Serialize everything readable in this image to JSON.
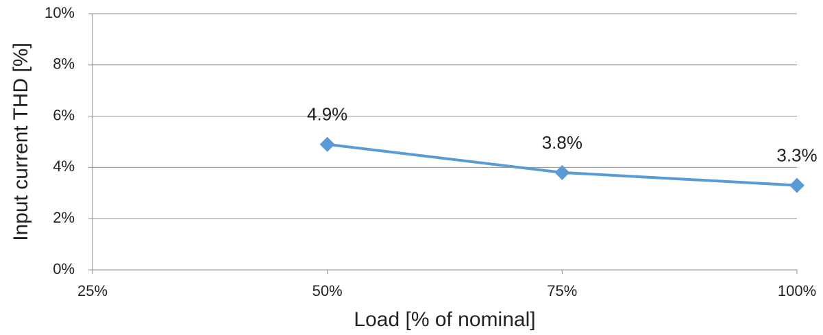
{
  "chart_data": {
    "type": "line",
    "x_label": "Load [% of nominal]",
    "y_label": "Input current THD [%]",
    "x": [
      50,
      75,
      100
    ],
    "values": [
      4.9,
      3.8,
      3.3
    ],
    "value_labels": [
      "4.9%",
      "3.8%",
      "3.3%"
    ],
    "color": "#5b9bd5",
    "xlim": [
      25,
      100
    ],
    "xticks": [
      {
        "value": 25,
        "label": "25%"
      },
      {
        "value": 50,
        "label": "50%"
      },
      {
        "value": 75,
        "label": "75%"
      },
      {
        "value": 100,
        "label": "100%"
      }
    ],
    "ylim": [
      0,
      10
    ],
    "yticks": [
      {
        "value": 0,
        "label": "0%"
      },
      {
        "value": 2,
        "label": "2%"
      },
      {
        "value": 4,
        "label": "4%"
      },
      {
        "value": 6,
        "label": "6%"
      },
      {
        "value": 8,
        "label": "8%"
      },
      {
        "value": 10,
        "label": "10%"
      }
    ],
    "grid": true
  }
}
